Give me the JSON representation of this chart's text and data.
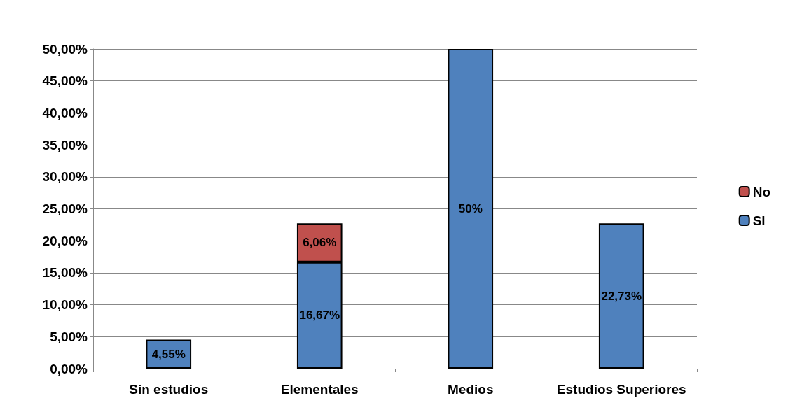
{
  "chart_data": {
    "type": "bar",
    "stacked": true,
    "categories": [
      "Sin estudios",
      "Elementales",
      "Medios",
      "Estudios Superiores"
    ],
    "series": [
      {
        "name": "Si",
        "color": "#4f81bd",
        "values": [
          4.55,
          16.67,
          50,
          22.73
        ],
        "value_labels": [
          "4,55%",
          "16,67%",
          "50%",
          "22,73%"
        ]
      },
      {
        "name": "No",
        "color": "#c0504d",
        "values": [
          null,
          6.06,
          null,
          null
        ],
        "value_labels": [
          null,
          "6,06%",
          null,
          null
        ]
      }
    ],
    "ylim": [
      0,
      50
    ],
    "yticks": [
      {
        "value": 0,
        "label": "0,00%"
      },
      {
        "value": 5,
        "label": "5,00%"
      },
      {
        "value": 10,
        "label": "10,00%"
      },
      {
        "value": 15,
        "label": "15,00%"
      },
      {
        "value": 20,
        "label": "20,00%"
      },
      {
        "value": 25,
        "label": "25,00%"
      },
      {
        "value": 30,
        "label": "30,00%"
      },
      {
        "value": 35,
        "label": "35,00%"
      },
      {
        "value": 40,
        "label": "40,00%"
      },
      {
        "value": 45,
        "label": "45,00%"
      },
      {
        "value": 50,
        "label": "50,00%"
      }
    ],
    "grid": "y",
    "legend": "right"
  }
}
